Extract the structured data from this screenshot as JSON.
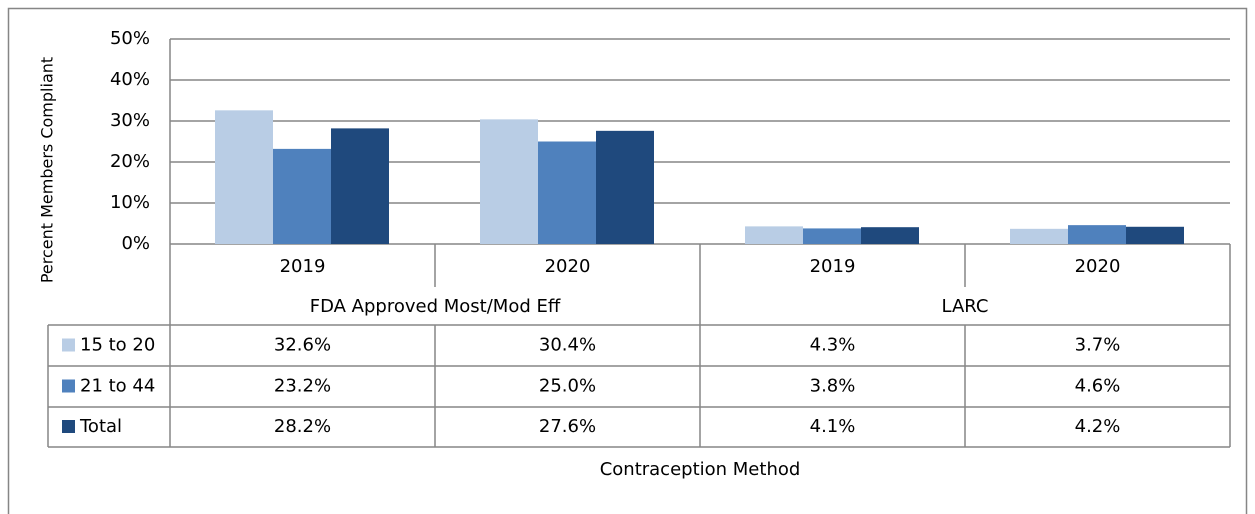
{
  "chart_data": {
    "type": "bar",
    "y_label": "Percent Members Compliant",
    "x_label": "Contraception Method",
    "categories": [
      "2019",
      "2020",
      "2019",
      "2020"
    ],
    "groups": [
      "FDA Approved Most/Mod Eff",
      "LARC"
    ],
    "series": [
      {
        "name": "15 to 20",
        "color": "#b9cde5",
        "values": [
          32.6,
          30.4,
          4.3,
          3.7
        ],
        "value_labels": [
          "32.6%",
          "30.4%",
          "4.3%",
          "3.7%"
        ]
      },
      {
        "name": "21 to 44",
        "color": "#4f81bd",
        "values": [
          23.2,
          25.0,
          3.8,
          4.6
        ],
        "value_labels": [
          "23.2%",
          "25.0%",
          "3.8%",
          "4.6%"
        ]
      },
      {
        "name": "Total",
        "color": "#1f497d",
        "values": [
          28.2,
          27.6,
          4.1,
          4.2
        ],
        "value_labels": [
          "28.2%",
          "27.6%",
          "4.1%",
          "4.2%"
        ]
      }
    ],
    "ylim": [
      0,
      50
    ],
    "yticks": [
      {
        "value": 0,
        "label": "0%"
      },
      {
        "value": 10,
        "label": "10%"
      },
      {
        "value": 20,
        "label": "20%"
      },
      {
        "value": 30,
        "label": "30%"
      },
      {
        "value": 40,
        "label": "40%"
      },
      {
        "value": 50,
        "label": "50%"
      }
    ],
    "grid": true
  }
}
